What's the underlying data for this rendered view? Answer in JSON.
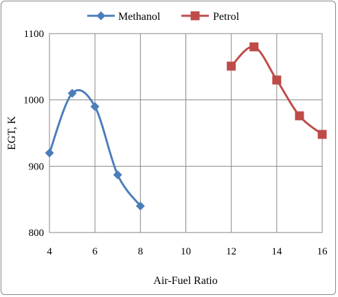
{
  "chart_data": {
    "type": "line",
    "xlabel": "Air-Fuel Ratio",
    "ylabel": "EGT, K",
    "xlim": [
      4,
      16
    ],
    "ylim": [
      800,
      1100
    ],
    "x_ticks": [
      4,
      6,
      8,
      10,
      12,
      14,
      16
    ],
    "y_ticks": [
      800,
      900,
      1000,
      1100
    ],
    "grid": "vertical and horizontal major gridlines",
    "smoothed_lines": true,
    "legend_position": "top",
    "series": [
      {
        "name": "Methanol",
        "color": "#4a7ebb",
        "marker": "diamond",
        "x": [
          4,
          5,
          6,
          7,
          8
        ],
        "y": [
          920,
          1010,
          990,
          887,
          840
        ]
      },
      {
        "name": "Petrol",
        "color": "#be4b48",
        "marker": "square",
        "x": [
          12,
          13,
          14,
          15,
          16
        ],
        "y": [
          1051,
          1080,
          1030,
          976,
          948
        ]
      }
    ]
  }
}
